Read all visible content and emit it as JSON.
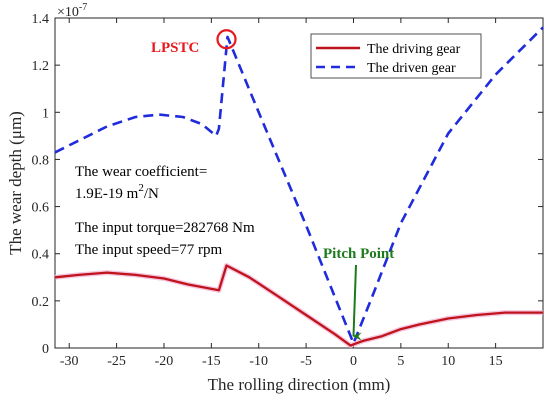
{
  "chart_data": {
    "type": "line",
    "title": "",
    "xlabel": "The rolling direction (mm)",
    "ylabel": "The wear depth (μm)",
    "y_multiplier": "×10",
    "y_multiplier_exp": "-7",
    "xlim": [
      -31.5,
      20
    ],
    "ylim": [
      0,
      1.4
    ],
    "xticks": [
      -30,
      -25,
      -20,
      -15,
      -10,
      -5,
      0,
      5,
      10,
      15
    ],
    "yticks": [
      0,
      0.2,
      0.4,
      0.6,
      0.8,
      1,
      1.2,
      1.4
    ],
    "xtick_labels": [
      "-30",
      "-25",
      "-20",
      "-15",
      "-10",
      "-5",
      "0",
      "5",
      "10",
      "15"
    ],
    "ytick_labels": [
      "0",
      "0.2",
      "0.4",
      "0.6",
      "0.8",
      "1",
      "1.2",
      "1.4"
    ],
    "grid": false,
    "legend_position": "top-right",
    "series": [
      {
        "name": "The driving gear",
        "color": "#c0141c",
        "style": "solid",
        "points": [
          [
            -31.5,
            0.3
          ],
          [
            -29,
            0.31
          ],
          [
            -26,
            0.32
          ],
          [
            -23,
            0.31
          ],
          [
            -20,
            0.295
          ],
          [
            -17.5,
            0.27
          ],
          [
            -14.2,
            0.245
          ],
          [
            -13.4,
            0.35
          ],
          [
            -11,
            0.3
          ],
          [
            -8,
            0.22
          ],
          [
            -5,
            0.14
          ],
          [
            -2,
            0.06
          ],
          [
            -0.3,
            0.01
          ],
          [
            0.3,
            0.02
          ],
          [
            1,
            0.03
          ],
          [
            3,
            0.05
          ],
          [
            5,
            0.08
          ],
          [
            7,
            0.1
          ],
          [
            10,
            0.125
          ],
          [
            13,
            0.14
          ],
          [
            16,
            0.15
          ],
          [
            20,
            0.15
          ]
        ]
      },
      {
        "name": "The driven gear",
        "color": "#1f2bdc",
        "style": "dashed",
        "points": [
          [
            -31.5,
            0.83
          ],
          [
            -29,
            0.88
          ],
          [
            -26,
            0.94
          ],
          [
            -23,
            0.98
          ],
          [
            -20.5,
            0.99
          ],
          [
            -18,
            0.98
          ],
          [
            -16,
            0.95
          ],
          [
            -14.5,
            0.9
          ],
          [
            -14.2,
            0.93
          ],
          [
            -13.3,
            1.32
          ],
          [
            -10,
            1.0
          ],
          [
            -5,
            0.52
          ],
          [
            -2,
            0.22
          ],
          [
            0,
            0.02
          ],
          [
            2,
            0.22
          ],
          [
            5,
            0.53
          ],
          [
            10,
            0.91
          ],
          [
            15,
            1.16
          ],
          [
            20,
            1.36
          ]
        ]
      }
    ],
    "annotations": [
      {
        "id": "lpstc",
        "text": "LPSTC",
        "color": "#e8191e",
        "marker_x": -13.4,
        "marker_y": 1.31
      },
      {
        "id": "pitch",
        "text": "Pitch Point",
        "color": "#1d7a1d",
        "arrow_to_x": 0,
        "arrow_to_y": 0.025
      }
    ],
    "notes": [
      "The wear coefficient=",
      "1.9E-19 m",
      "2",
      "/N",
      "The input torque=282768 Nm",
      "The input speed=77 rpm"
    ]
  }
}
